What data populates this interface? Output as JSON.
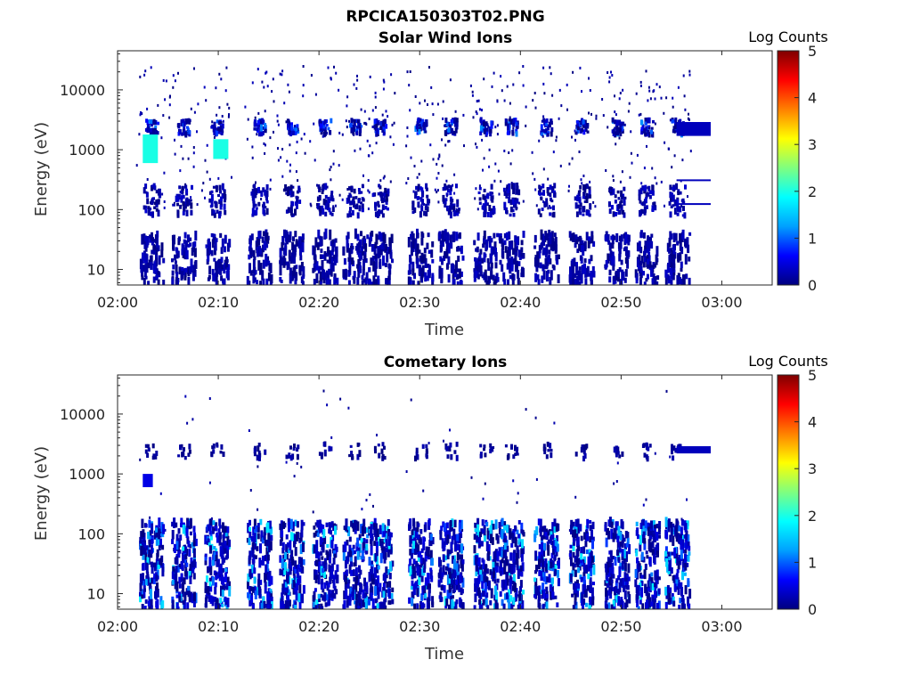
{
  "figure_title": "RPCICA150303T02.PNG",
  "colorbar_stops": [
    "#00007f",
    "#0000ff",
    "#00a0ff",
    "#00ffff",
    "#7fff7f",
    "#ffff00",
    "#ff8000",
    "#ff0000",
    "#7f0000"
  ],
  "chart_data": [
    {
      "type": "heatmap",
      "title": "Solar Wind Ions",
      "xlabel": "Time",
      "ylabel": "Energy (eV)",
      "yscale": "log",
      "xlim": [
        "02:00",
        "03:05"
      ],
      "ylim": [
        5.5,
        45000
      ],
      "xticks": [
        "02:00",
        "02:10",
        "02:20",
        "02:30",
        "02:40",
        "02:50",
        "03:00"
      ],
      "yticks": [
        "10",
        "100",
        "1000",
        "10000"
      ],
      "colorbar_label": "Log Counts",
      "colorbar_ticks": [
        "0",
        "1",
        "2",
        "3",
        "4",
        "5"
      ],
      "colorbar_range": [
        0,
        5
      ],
      "burst_times_min": [
        3.3,
        6.5,
        9.8,
        14.0,
        17.2,
        20.5,
        23.5,
        26.0,
        30.0,
        33.0,
        36.5,
        39.0,
        42.5,
        46.0,
        49.5,
        52.5,
        55.5
      ],
      "features": [
        {
          "t_start": 2.5,
          "t_end": 4.0,
          "e_low": 600,
          "e_high": 1800,
          "log_counts": 2.0
        },
        {
          "t_start": 9.5,
          "t_end": 11.0,
          "e_low": 700,
          "e_high": 1500,
          "log_counts": 2.0
        },
        {
          "t_start": 55.5,
          "t_end": 58.9,
          "e_low": 1700,
          "e_high": 2900,
          "log_counts": 0.3
        },
        {
          "t_start": 55.5,
          "t_end": 58.9,
          "e_low": 300,
          "e_high": 320,
          "log_counts": 0.3
        },
        {
          "t_start": 55.5,
          "t_end": 58.9,
          "e_low": 120,
          "e_high": 128,
          "log_counts": 0.3
        }
      ]
    },
    {
      "type": "heatmap",
      "title": "Cometary Ions",
      "xlabel": "Time",
      "ylabel": "Energy (eV)",
      "yscale": "log",
      "xlim": [
        "02:00",
        "03:05"
      ],
      "ylim": [
        5.5,
        45000
      ],
      "xticks": [
        "02:00",
        "02:10",
        "02:20",
        "02:30",
        "02:40",
        "02:50",
        "03:00"
      ],
      "yticks": [
        "10",
        "100",
        "1000",
        "10000"
      ],
      "colorbar_label": "Log Counts",
      "colorbar_ticks": [
        "0",
        "1",
        "2",
        "3",
        "4",
        "5"
      ],
      "colorbar_range": [
        0,
        5
      ],
      "burst_times_min": [
        3.3,
        6.5,
        9.8,
        14.0,
        17.2,
        20.5,
        23.5,
        26.0,
        30.0,
        33.0,
        36.5,
        39.0,
        42.5,
        46.0,
        49.5,
        52.5,
        55.5
      ],
      "features": [
        {
          "t_start": 55.5,
          "t_end": 58.9,
          "e_low": 2200,
          "e_high": 2900,
          "log_counts": 0.3
        },
        {
          "t_start": 2.5,
          "t_end": 3.5,
          "e_low": 600,
          "e_high": 1000,
          "log_counts": 0.5
        }
      ]
    }
  ]
}
